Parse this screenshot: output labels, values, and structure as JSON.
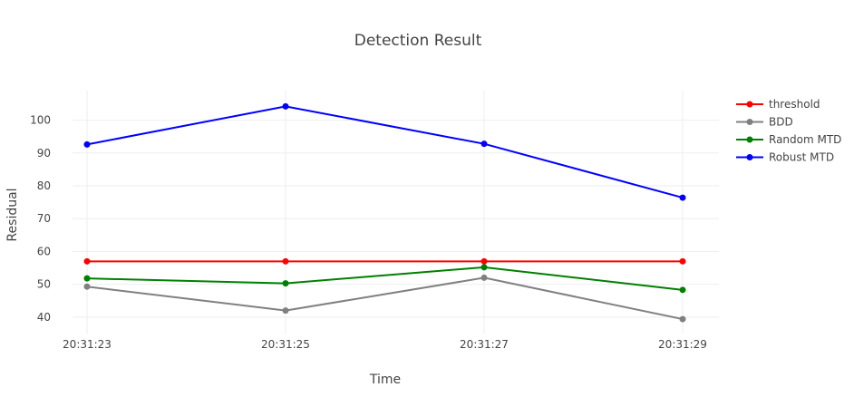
{
  "chart_data": {
    "type": "line",
    "title": "Detection Result",
    "xlabel": "Time",
    "ylabel": "Residual",
    "categories": [
      "20:31:23",
      "20:31:25",
      "20:31:27",
      "20:31:29"
    ],
    "yticks": [
      40,
      50,
      60,
      70,
      80,
      90,
      100
    ],
    "ylim": [
      35,
      109
    ],
    "grid": true,
    "legend_position": "top-right",
    "series": [
      {
        "name": "threshold",
        "color": "#ff0000",
        "values": [
          57,
          57,
          57,
          57
        ]
      },
      {
        "name": "BDD",
        "color": "#808080",
        "values": [
          49.3,
          42,
          52,
          39.4
        ]
      },
      {
        "name": "Random MTD",
        "color": "#008000",
        "values": [
          51.8,
          50.3,
          55.2,
          48.3
        ]
      },
      {
        "name": "Robust MTD",
        "color": "#0000ff",
        "values": [
          92.6,
          104.2,
          92.8,
          76.4
        ]
      }
    ]
  }
}
